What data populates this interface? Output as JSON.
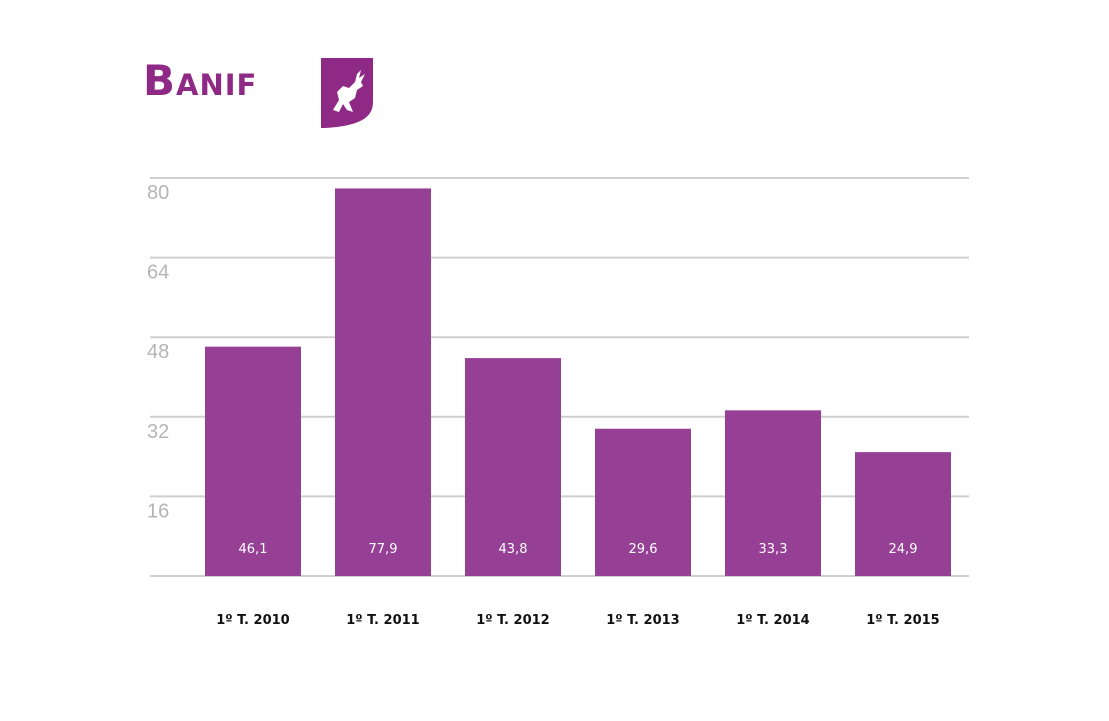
{
  "brand": {
    "logo_text": "Banif",
    "logo_icon": "deer-shield-icon",
    "color": "#8e2a86"
  },
  "chart_data": {
    "type": "bar",
    "categories": [
      "1º T. 2010",
      "1º T. 2011",
      "1º T. 2012",
      "1º T. 2013",
      "1º T. 2014",
      "1º T. 2015"
    ],
    "values": [
      46.1,
      77.9,
      43.8,
      29.6,
      33.3,
      24.9
    ],
    "value_labels": [
      "46,1",
      "77,9",
      "43,8",
      "29,6",
      "33,3",
      "24,9"
    ],
    "y_ticks": [
      16,
      32,
      48,
      64,
      80
    ],
    "ylim": [
      0,
      80
    ],
    "grid": true,
    "legend": "none",
    "bar_color": "#953f95",
    "grid_color": "#cfcfcf"
  }
}
